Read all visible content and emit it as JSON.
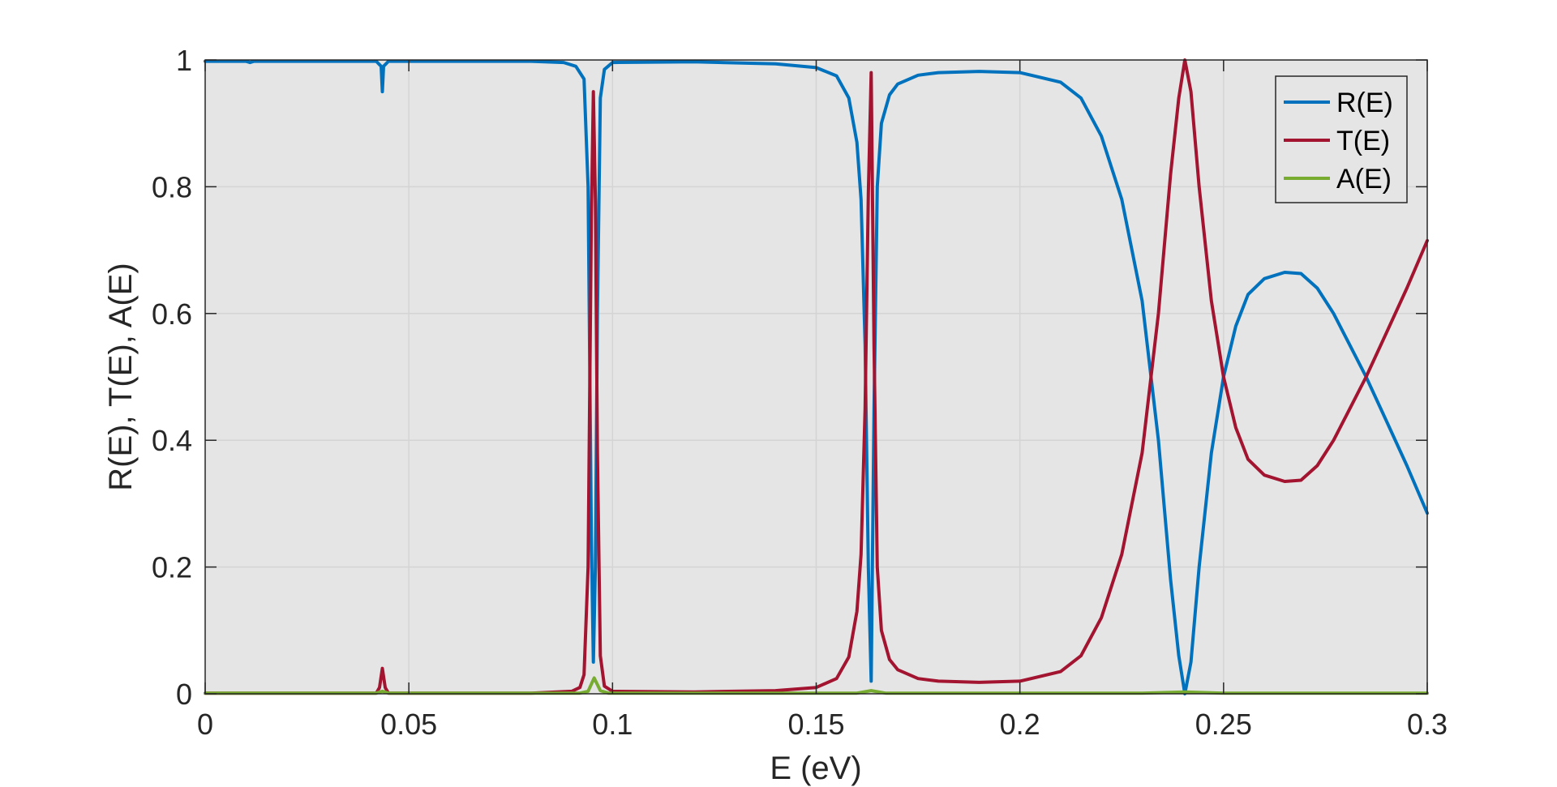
{
  "chart_data": {
    "type": "line",
    "xlabel": "E (eV)",
    "ylabel": "R(E), T(E), A(E)",
    "xlim": [
      0,
      0.3
    ],
    "ylim": [
      0,
      1
    ],
    "xticks": [
      0,
      0.05,
      0.1,
      0.15,
      0.2,
      0.25,
      0.3
    ],
    "xtick_labels": [
      "0",
      "0.05",
      "0.1",
      "0.15",
      "0.2",
      "0.25",
      "0.3"
    ],
    "yticks": [
      0,
      0.2,
      0.4,
      0.6,
      0.8,
      1
    ],
    "ytick_labels": [
      "0",
      "0.2",
      "0.4",
      "0.6",
      "0.8",
      "1"
    ],
    "grid": true,
    "background": "#e5e5e5",
    "legend_location": "top-right",
    "series": [
      {
        "name": "R(E)",
        "color": "#0072bd",
        "x": [
          0,
          0.01,
          0.011,
          0.012,
          0.042,
          0.0432,
          0.0435,
          0.0438,
          0.045,
          0.06,
          0.08,
          0.088,
          0.091,
          0.093,
          0.094,
          0.0948,
          0.0953,
          0.0958,
          0.0963,
          0.097,
          0.098,
          0.1,
          0.12,
          0.14,
          0.15,
          0.155,
          0.158,
          0.16,
          0.161,
          0.162,
          0.1628,
          0.1635,
          0.1642,
          0.165,
          0.166,
          0.168,
          0.17,
          0.175,
          0.18,
          0.19,
          0.2,
          0.21,
          0.215,
          0.22,
          0.225,
          0.23,
          0.234,
          0.237,
          0.239,
          0.2405,
          0.242,
          0.244,
          0.247,
          0.25,
          0.253,
          0.256,
          0.26,
          0.265,
          0.269,
          0.273,
          0.277,
          0.281,
          0.285,
          0.29,
          0.295,
          0.3
        ],
        "y": [
          0.998,
          0.998,
          0.996,
          0.998,
          0.998,
          0.99,
          0.95,
          0.99,
          0.998,
          0.998,
          0.998,
          0.996,
          0.99,
          0.97,
          0.8,
          0.25,
          0.05,
          0.2,
          0.6,
          0.94,
          0.985,
          0.996,
          0.997,
          0.994,
          0.988,
          0.975,
          0.94,
          0.87,
          0.78,
          0.55,
          0.2,
          0.02,
          0.45,
          0.8,
          0.9,
          0.945,
          0.962,
          0.976,
          0.98,
          0.982,
          0.98,
          0.965,
          0.94,
          0.88,
          0.78,
          0.62,
          0.4,
          0.18,
          0.06,
          0.0,
          0.05,
          0.2,
          0.38,
          0.5,
          0.58,
          0.63,
          0.655,
          0.665,
          0.663,
          0.64,
          0.6,
          0.55,
          0.5,
          0.43,
          0.36,
          0.285
        ]
      },
      {
        "name": "T(E)",
        "color": "#a2142f",
        "x": [
          0,
          0.042,
          0.0428,
          0.0435,
          0.0442,
          0.045,
          0.08,
          0.09,
          0.092,
          0.093,
          0.094,
          0.0948,
          0.0953,
          0.0958,
          0.0963,
          0.097,
          0.098,
          0.1,
          0.12,
          0.14,
          0.15,
          0.155,
          0.158,
          0.16,
          0.161,
          0.162,
          0.1628,
          0.1635,
          0.1642,
          0.165,
          0.166,
          0.168,
          0.17,
          0.175,
          0.18,
          0.19,
          0.2,
          0.21,
          0.215,
          0.22,
          0.225,
          0.23,
          0.234,
          0.237,
          0.239,
          0.2405,
          0.242,
          0.244,
          0.247,
          0.25,
          0.253,
          0.256,
          0.26,
          0.265,
          0.269,
          0.273,
          0.277,
          0.281,
          0.285,
          0.29,
          0.295,
          0.3
        ],
        "y": [
          0.001,
          0.001,
          0.01,
          0.04,
          0.01,
          0.001,
          0.001,
          0.004,
          0.01,
          0.03,
          0.2,
          0.75,
          0.95,
          0.78,
          0.38,
          0.06,
          0.012,
          0.004,
          0.003,
          0.005,
          0.01,
          0.024,
          0.058,
          0.13,
          0.22,
          0.45,
          0.79,
          0.98,
          0.55,
          0.2,
          0.1,
          0.054,
          0.038,
          0.024,
          0.02,
          0.018,
          0.02,
          0.035,
          0.06,
          0.12,
          0.22,
          0.38,
          0.6,
          0.82,
          0.94,
          1.0,
          0.95,
          0.8,
          0.62,
          0.5,
          0.42,
          0.37,
          0.345,
          0.335,
          0.337,
          0.36,
          0.4,
          0.45,
          0.5,
          0.57,
          0.64,
          0.715
        ]
      },
      {
        "name": "A(E)",
        "color": "#77ac30",
        "x": [
          0,
          0.042,
          0.0435,
          0.045,
          0.092,
          0.094,
          0.0955,
          0.097,
          0.099,
          0.16,
          0.1635,
          0.167,
          0.23,
          0.2405,
          0.25,
          0.3
        ],
        "y": [
          0.001,
          0.001,
          0.004,
          0.001,
          0.001,
          0.004,
          0.025,
          0.005,
          0.001,
          0.001,
          0.005,
          0.001,
          0.001,
          0.003,
          0.001,
          0.001
        ]
      }
    ]
  }
}
